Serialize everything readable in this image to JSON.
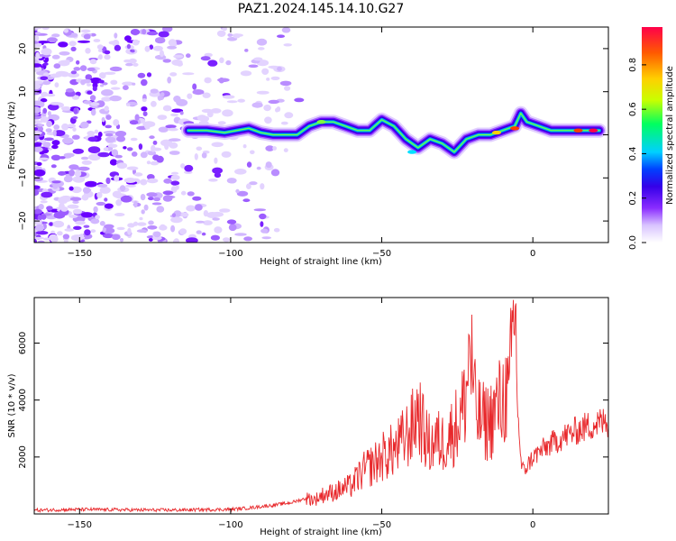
{
  "title": "PAZ1.2024.145.14.10.G27",
  "colors": {
    "snr_line": "#e8282b",
    "spectrum_blob": "#6a00ff",
    "colormap": [
      "#ffffff",
      "#d9c4ff",
      "#8a2cff",
      "#3500e8",
      "#0040ff",
      "#00d0ff",
      "#00ff60",
      "#c8ff00",
      "#ffd000",
      "#ff5a00",
      "#ff004a"
    ]
  },
  "chart_data": [
    {
      "type": "heatmap",
      "xlabel": "Height of straight line (km)",
      "ylabel": "Frequency (Hz)",
      "xlim": [
        -165,
        25
      ],
      "ylim": [
        -25,
        25
      ],
      "x_ticks": [
        -150,
        -100,
        -50,
        0
      ],
      "y_ticks": [
        -20,
        -10,
        0,
        10,
        20
      ],
      "grid": false,
      "ridge": {
        "x": [
          -114,
          -108,
          -102,
          -98,
          -94,
          -90,
          -86,
          -82,
          -78,
          -74,
          -70,
          -66,
          -62,
          -58,
          -54,
          -50,
          -46,
          -42,
          -38,
          -34,
          -30,
          -26,
          -22,
          -18,
          -14,
          -10,
          -6,
          -4,
          -2,
          2,
          6,
          10,
          14,
          18,
          22
        ],
        "y": [
          1,
          1,
          0.5,
          1,
          1.5,
          0.5,
          0,
          0,
          0,
          2,
          3,
          3,
          2,
          1,
          1,
          3.5,
          2,
          -1,
          -3,
          -1,
          -2,
          -4,
          -1,
          0,
          0,
          1,
          2,
          5,
          3,
          2,
          1,
          1,
          1,
          1,
          1
        ]
      },
      "colorbar": {
        "label": "Normalized spectral amplitude",
        "range": [
          0.0,
          0.97
        ],
        "ticks": [
          0.0,
          0.2,
          0.4,
          0.6,
          0.8
        ]
      }
    },
    {
      "type": "line",
      "xlabel": "Height of straight line (km)",
      "ylabel": "SNR (10 * v/v)",
      "xlim": [
        -165,
        25
      ],
      "ylim": [
        0,
        7600
      ],
      "x_ticks": [
        -150,
        -100,
        -50,
        0
      ],
      "y_ticks": [
        2000,
        4000,
        6000
      ],
      "series": [
        {
          "x": [
            -165,
            -160,
            -150,
            -140,
            -130,
            -120,
            -110,
            -100,
            -95,
            -90,
            -85,
            -80,
            -75,
            -72,
            -70,
            -65,
            -60,
            -57,
            -55,
            -52,
            -50,
            -45,
            -40,
            -38,
            -36,
            -34,
            -32,
            -30,
            -28,
            -26,
            -24,
            -22,
            -21,
            -20,
            -19,
            -18,
            -16,
            -14,
            -12,
            -10,
            -9,
            -8,
            -7,
            -6,
            -5,
            -4,
            -3,
            0,
            5,
            10,
            15,
            20,
            25
          ],
          "y": [
            130,
            140,
            160,
            150,
            140,
            135,
            150,
            160,
            200,
            260,
            320,
            400,
            550,
            500,
            650,
            800,
            1000,
            1400,
            1600,
            1800,
            2000,
            2300,
            3000,
            3700,
            2800,
            2400,
            2600,
            2500,
            2700,
            3000,
            3400,
            4200,
            6000,
            5000,
            3600,
            3400,
            3200,
            3300,
            3700,
            4000,
            4300,
            3900,
            5600,
            7600,
            3800,
            1800,
            1500,
            2000,
            2400,
            2700,
            2950,
            3150,
            3250
          ]
        }
      ]
    }
  ]
}
